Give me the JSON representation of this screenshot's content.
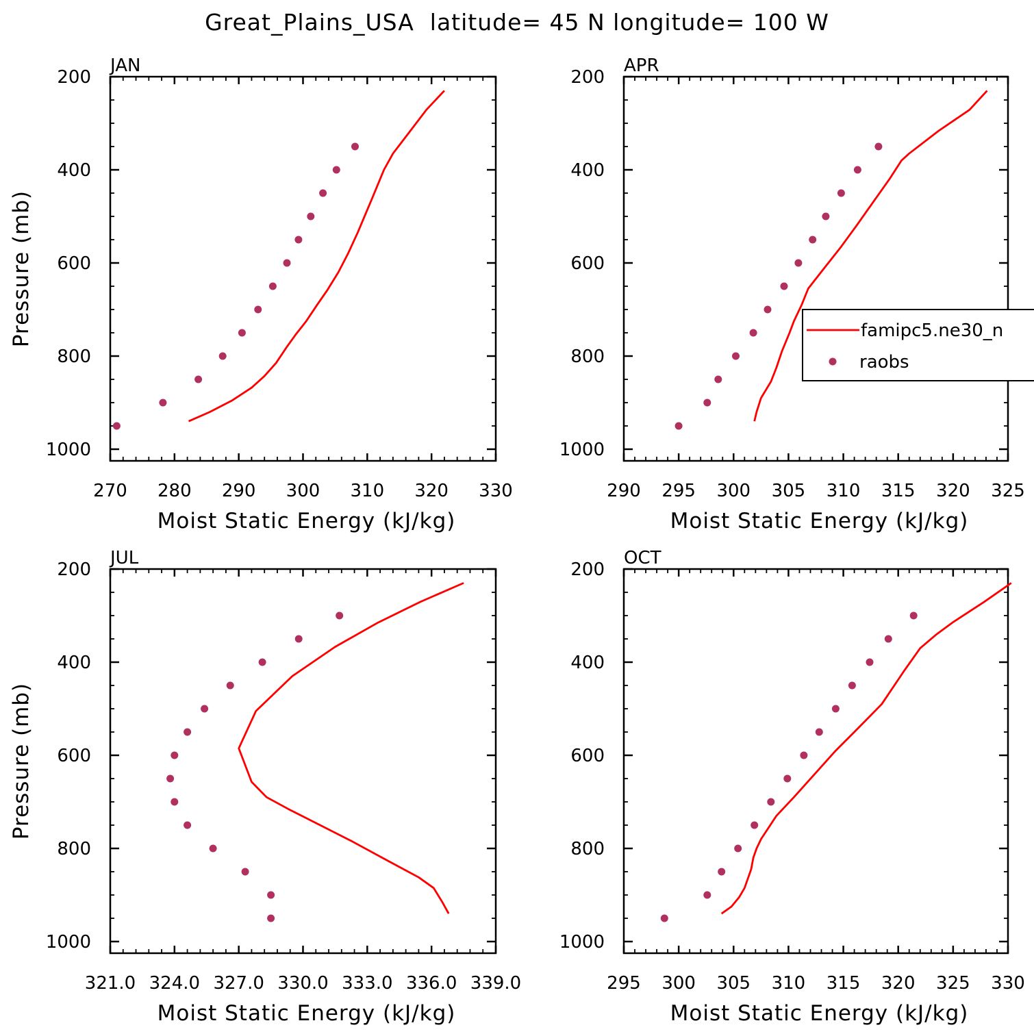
{
  "figure_title": "Great_Plains_USA  latitude= 45 N longitude= 100 W",
  "colors": {
    "model": "#ff0000",
    "obs": "#b03060",
    "axis": "#000000"
  },
  "legend": {
    "position": "right-middle of APR panel",
    "model_label": "famipc5.ne30_n",
    "obs_label": "raobs"
  },
  "chart_data": [
    {
      "type": "line",
      "title": "JAN",
      "xlabel": "Moist Static Energy (kJ/kg)",
      "ylabel": "Pressure (mb)",
      "xlim": [
        270,
        330
      ],
      "ylim": [
        1025,
        200
      ],
      "x_ticks": [
        270,
        280,
        290,
        300,
        310,
        320,
        330
      ],
      "x_tick_labels": [
        "270",
        "280",
        "290",
        "300",
        "310",
        "320",
        "330"
      ],
      "y_ticks": [
        200,
        400,
        600,
        800,
        1000
      ],
      "y_tick_labels": [
        "200",
        "400",
        "600",
        "800",
        "1000"
      ],
      "series": [
        {
          "name": "famipc5.ne30_n",
          "kind": "line",
          "points": [
            [
              282.2,
              940
            ],
            [
              285.5,
              920
            ],
            [
              289,
              895
            ],
            [
              292,
              868
            ],
            [
              294,
              843
            ],
            [
              295.8,
              815
            ],
            [
              297.5,
              780
            ],
            [
              298.8,
              755
            ],
            [
              300.5,
              725
            ],
            [
              302.2,
              690
            ],
            [
              303.8,
              658
            ],
            [
              305.5,
              620
            ],
            [
              307,
              580
            ],
            [
              308.5,
              535
            ],
            [
              310.8,
              460
            ],
            [
              312.6,
              400
            ],
            [
              314,
              365
            ],
            [
              316.5,
              320
            ],
            [
              319.2,
              271
            ],
            [
              322,
              230
            ]
          ]
        },
        {
          "name": "raobs",
          "kind": "scatter",
          "points": [
            [
              271,
              950
            ],
            [
              278.2,
              900
            ],
            [
              283.7,
              850
            ],
            [
              287.5,
              800
            ],
            [
              290.5,
              750
            ],
            [
              293,
              700
            ],
            [
              295.3,
              650
            ],
            [
              297.5,
              600
            ],
            [
              299.3,
              550
            ],
            [
              301.2,
              500
            ],
            [
              303.1,
              450
            ],
            [
              305.2,
              400
            ],
            [
              308.1,
              350
            ]
          ]
        }
      ]
    },
    {
      "type": "line",
      "title": "APR",
      "xlabel": "Moist Static Energy (kJ/kg)",
      "ylabel": "Pressure (mb)",
      "xlim": [
        290,
        325
      ],
      "ylim": [
        1025,
        200
      ],
      "x_ticks": [
        290,
        295,
        300,
        305,
        310,
        315,
        320,
        325
      ],
      "x_tick_labels": [
        "290",
        "295",
        "300",
        "305",
        "310",
        "315",
        "320",
        "325"
      ],
      "y_ticks": [
        200,
        400,
        600,
        800,
        1000
      ],
      "y_tick_labels": [
        "200",
        "400",
        "600",
        "800",
        "1000"
      ],
      "series": [
        {
          "name": "famipc5.ne30_n",
          "kind": "line",
          "points": [
            [
              301.9,
              940
            ],
            [
              302.1,
              920
            ],
            [
              302.5,
              890
            ],
            [
              303.4,
              855
            ],
            [
              303.9,
              825
            ],
            [
              304.4,
              790
            ],
            [
              305.1,
              750
            ],
            [
              305.5,
              725
            ],
            [
              306.2,
              690
            ],
            [
              306.8,
              655
            ],
            [
              308.3,
              610
            ],
            [
              309.8,
              565
            ],
            [
              311.2,
              520
            ],
            [
              312.7,
              470
            ],
            [
              314.2,
              420
            ],
            [
              315.3,
              380
            ],
            [
              316,
              365
            ],
            [
              318.7,
              316
            ],
            [
              321.5,
              271
            ],
            [
              323.1,
              230
            ]
          ]
        },
        {
          "name": "raobs",
          "kind": "scatter",
          "points": [
            [
              295,
              950
            ],
            [
              297.6,
              900
            ],
            [
              298.6,
              850
            ],
            [
              300.2,
              800
            ],
            [
              301.8,
              750
            ],
            [
              303.1,
              700
            ],
            [
              304.6,
              650
            ],
            [
              305.9,
              600
            ],
            [
              307.2,
              550
            ],
            [
              308.4,
              500
            ],
            [
              309.8,
              450
            ],
            [
              311.3,
              400
            ],
            [
              313.2,
              350
            ]
          ]
        }
      ]
    },
    {
      "type": "line",
      "title": "JUL",
      "xlabel": "Moist Static Energy (kJ/kg)",
      "ylabel": "Pressure (mb)",
      "xlim": [
        321,
        339
      ],
      "ylim": [
        1025,
        200
      ],
      "x_ticks": [
        321,
        324,
        327,
        330,
        333,
        336,
        339
      ],
      "x_tick_labels": [
        "321.0",
        "324.0",
        "327.0",
        "330.0",
        "333.0",
        "336.0",
        "339.0"
      ],
      "y_ticks": [
        200,
        400,
        600,
        800,
        1000
      ],
      "y_tick_labels": [
        "200",
        "400",
        "600",
        "800",
        "1000"
      ],
      "series": [
        {
          "name": "famipc5.ne30_n",
          "kind": "line",
          "points": [
            [
              336.8,
              940
            ],
            [
              336.5,
              915
            ],
            [
              336.1,
              885
            ],
            [
              335.4,
              862
            ],
            [
              333.9,
              825
            ],
            [
              332.3,
              785
            ],
            [
              330.8,
              750
            ],
            [
              329.3,
              715
            ],
            [
              328.3,
              690
            ],
            [
              327.6,
              657
            ],
            [
              327,
              585
            ],
            [
              327.8,
              505
            ],
            [
              329.5,
              430
            ],
            [
              331.5,
              367
            ],
            [
              333.5,
              315
            ],
            [
              335.5,
              270
            ],
            [
              337.5,
              230
            ]
          ]
        },
        {
          "name": "raobs",
          "kind": "scatter",
          "points": [
            [
              328.5,
              950
            ],
            [
              328.5,
              900
            ],
            [
              327.3,
              850
            ],
            [
              325.8,
              800
            ],
            [
              324.6,
              750
            ],
            [
              324,
              700
            ],
            [
              323.8,
              650
            ],
            [
              324,
              600
            ],
            [
              324.6,
              550
            ],
            [
              325.4,
              500
            ],
            [
              326.6,
              450
            ],
            [
              328.1,
              400
            ],
            [
              329.8,
              350
            ],
            [
              331.7,
              300
            ]
          ]
        }
      ]
    },
    {
      "type": "line",
      "title": "OCT",
      "xlabel": "Moist Static Energy (kJ/kg)",
      "ylabel": "Pressure (mb)",
      "xlim": [
        295,
        330
      ],
      "ylim": [
        1025,
        200
      ],
      "x_ticks": [
        295,
        300,
        305,
        310,
        315,
        320,
        325,
        330
      ],
      "x_tick_labels": [
        "295",
        "300",
        "305",
        "310",
        "315",
        "320",
        "325",
        "330"
      ],
      "y_ticks": [
        200,
        400,
        600,
        800,
        1000
      ],
      "y_tick_labels": [
        "200",
        "400",
        "600",
        "800",
        "1000"
      ],
      "series": [
        {
          "name": "famipc5.ne30_n",
          "kind": "line",
          "points": [
            [
              303.9,
              940
            ],
            [
              304.8,
              925
            ],
            [
              305.5,
              905
            ],
            [
              306,
              885
            ],
            [
              306.3,
              865
            ],
            [
              306.6,
              845
            ],
            [
              306.8,
              820
            ],
            [
              307.1,
              800
            ],
            [
              307.5,
              780
            ],
            [
              308.9,
              730
            ],
            [
              310.5,
              690
            ],
            [
              312.4,
              640
            ],
            [
              314.3,
              590
            ],
            [
              316,
              550
            ],
            [
              318.5,
              490
            ],
            [
              320.5,
              420
            ],
            [
              322,
              370
            ],
            [
              323.5,
              340
            ],
            [
              325,
              314
            ],
            [
              327.8,
              271
            ],
            [
              330.3,
              230
            ]
          ]
        },
        {
          "name": "raobs",
          "kind": "scatter",
          "points": [
            [
              298.7,
              950
            ],
            [
              302.6,
              900
            ],
            [
              303.9,
              850
            ],
            [
              305.4,
              800
            ],
            [
              306.9,
              750
            ],
            [
              308.4,
              700
            ],
            [
              309.9,
              650
            ],
            [
              311.4,
              600
            ],
            [
              312.8,
              550
            ],
            [
              314.3,
              500
            ],
            [
              315.8,
              450
            ],
            [
              317.4,
              400
            ],
            [
              319.1,
              350
            ],
            [
              321.4,
              300
            ]
          ]
        }
      ]
    }
  ]
}
